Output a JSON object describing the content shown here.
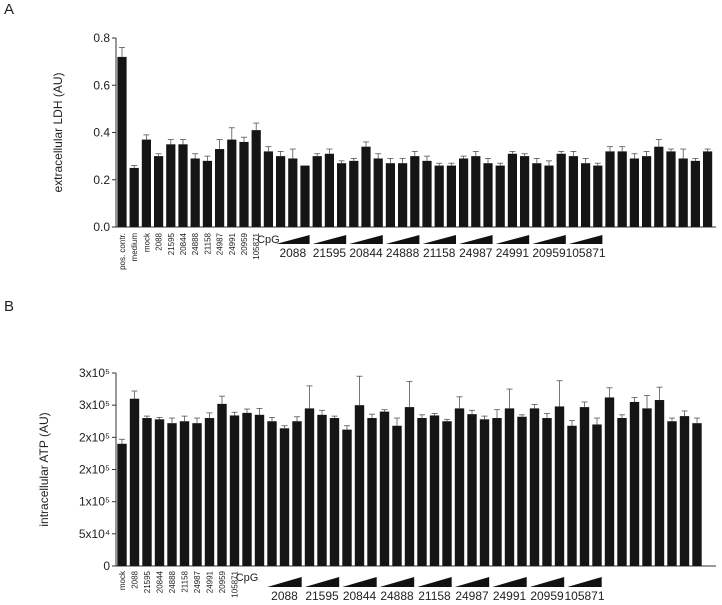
{
  "chart_data": [
    {
      "type": "bar",
      "panel": "A",
      "ylabel": "extracellular LDH (AU)",
      "ylim": [
        0,
        0.8
      ],
      "yticks": [
        "0.0",
        "0.2",
        "0.4",
        "0.6",
        "0.8"
      ],
      "ytick_values": [
        0,
        0.2,
        0.4,
        0.6,
        0.8
      ],
      "rotated_labels": [
        "pos. contr.",
        "medium",
        "mock",
        "2088",
        "21595",
        "20844",
        "24888",
        "21158",
        "24987",
        "24991",
        "20959",
        "105871"
      ],
      "cpg_label": "CpG",
      "group_labels": [
        "2088",
        "21595",
        "20844",
        "24888",
        "21158",
        "24987",
        "24991",
        "20959",
        "105871"
      ],
      "bars_per_group": 3,
      "values": [
        0.72,
        0.25,
        0.37,
        0.3,
        0.35,
        0.35,
        0.29,
        0.28,
        0.33,
        0.37,
        0.36,
        0.41,
        0.32,
        0.3,
        0.29,
        0.26,
        0.3,
        0.31,
        0.27,
        0.28,
        0.34,
        0.29,
        0.27,
        0.27,
        0.3,
        0.28,
        0.26,
        0.26,
        0.29,
        0.3,
        0.27,
        0.26,
        0.31,
        0.3,
        0.27,
        0.26,
        0.31,
        0.3,
        0.27,
        0.26,
        0.32,
        0.32,
        0.29,
        0.3,
        0.34,
        0.32,
        0.29,
        0.28,
        0.32
      ],
      "errors": [
        0.04,
        0.01,
        0.02,
        0.01,
        0.02,
        0.02,
        0.02,
        0.02,
        0.04,
        0.05,
        0.02,
        0.03,
        0.02,
        0.02,
        0.04,
        0.0,
        0.01,
        0.02,
        0.01,
        0.01,
        0.02,
        0.02,
        0.02,
        0.02,
        0.02,
        0.02,
        0.01,
        0.01,
        0.01,
        0.02,
        0.02,
        0.01,
        0.01,
        0.01,
        0.02,
        0.02,
        0.01,
        0.02,
        0.02,
        0.01,
        0.02,
        0.02,
        0.02,
        0.02,
        0.03,
        0.01,
        0.04,
        0.01,
        0.01
      ]
    },
    {
      "type": "bar",
      "panel": "B",
      "ylabel": "intracellular ATP (AU)",
      "ylim": [
        0,
        300000
      ],
      "yticks": [
        "0",
        "5x10⁴",
        "1x10⁵",
        "2x10⁵",
        "2x10⁵",
        "3x10⁵",
        "3x10⁵"
      ],
      "ytick_values": [
        0,
        50000,
        100000,
        150000,
        200000,
        250000,
        300000
      ],
      "rotated_labels": [
        "mock",
        "2088",
        "21595",
        "20844",
        "24888",
        "21158",
        "24987",
        "24991",
        "20959",
        "105871"
      ],
      "cpg_label": "CpG",
      "group_labels": [
        "2088",
        "21595",
        "20844",
        "24888",
        "21158",
        "24987",
        "24991",
        "20959",
        "105871"
      ],
      "bars_per_group": 3,
      "values": [
        190000,
        260000,
        230000,
        228000,
        222000,
        225000,
        222000,
        230000,
        252000,
        234000,
        238000,
        235000,
        225000,
        214000,
        225000,
        245000,
        235000,
        230000,
        212000,
        250000,
        230000,
        240000,
        218000,
        247000,
        230000,
        234000,
        225000,
        245000,
        236000,
        228000,
        230000,
        245000,
        232000,
        245000,
        230000,
        248000,
        218000,
        247000,
        220000,
        262000,
        230000,
        255000,
        245000,
        258000,
        225000,
        233000,
        222000
      ],
      "errors": [
        7000,
        12000,
        3000,
        3000,
        8000,
        8000,
        8000,
        8000,
        12000,
        5000,
        6000,
        10000,
        6000,
        4000,
        7000,
        35000,
        7000,
        3000,
        6000,
        45000,
        6000,
        3000,
        12000,
        40000,
        5000,
        3000,
        3000,
        18000,
        6000,
        5000,
        13000,
        30000,
        3000,
        6000,
        7000,
        40000,
        8000,
        8000,
        10000,
        15000,
        5000,
        7000,
        20000,
        20000,
        5000,
        8000,
        8000
      ]
    }
  ]
}
